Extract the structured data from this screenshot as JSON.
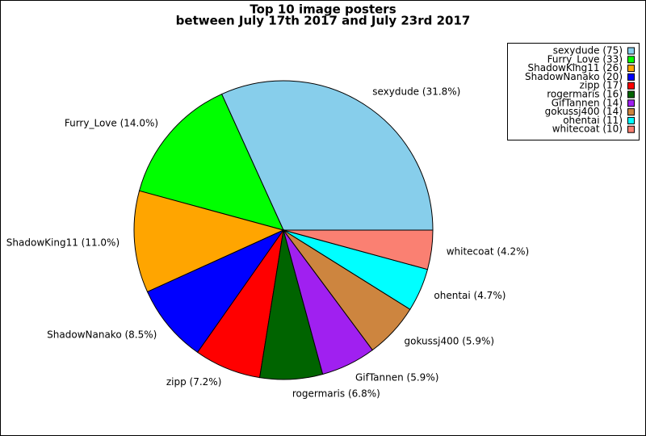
{
  "chart_data": {
    "type": "pie",
    "title": "Top 10 image posters",
    "subtitle": "between July 17th 2017 and July 23rd 2017",
    "categories": [
      "sexydude",
      "Furry_Love",
      "ShadowKing11",
      "ShadowNanako",
      "zipp",
      "rogermaris",
      "GifTannen",
      "gokussj400",
      "ohentai",
      "whitecoat"
    ],
    "values": [
      75,
      33,
      26,
      20,
      17,
      16,
      14,
      14,
      11,
      10
    ],
    "value_labels": [
      "sexydude (75)",
      "Furry_Love (33)",
      "ShadowKing11 (26)",
      "ShadowNanako (20)",
      "zipp (17)",
      "rogermaris (16)",
      "GifTannen (14)",
      "gokussj400 (14)",
      "ohentai (11)",
      "whitecoat (10)"
    ],
    "slice_labels": [
      "sexydude (31.8%)",
      "Furry_Love (14.0%)",
      "ShadowKing11 (11.0%)",
      "ShadowNanako (8.5%)",
      "zipp (7.2%)",
      "rogermaris (6.8%)",
      "GifTannen (5.9%)",
      "gokussj400 (5.9%)",
      "ohentai (4.7%)",
      "whitecoat (4.2%)"
    ],
    "colors": [
      "#87ceeb",
      "#00ff00",
      "#ffa500",
      "#0000ff",
      "#ff0000",
      "#006400",
      "#a020f0",
      "#cd853f",
      "#00ffff",
      "#fa8072"
    ],
    "legend": "upper right"
  }
}
